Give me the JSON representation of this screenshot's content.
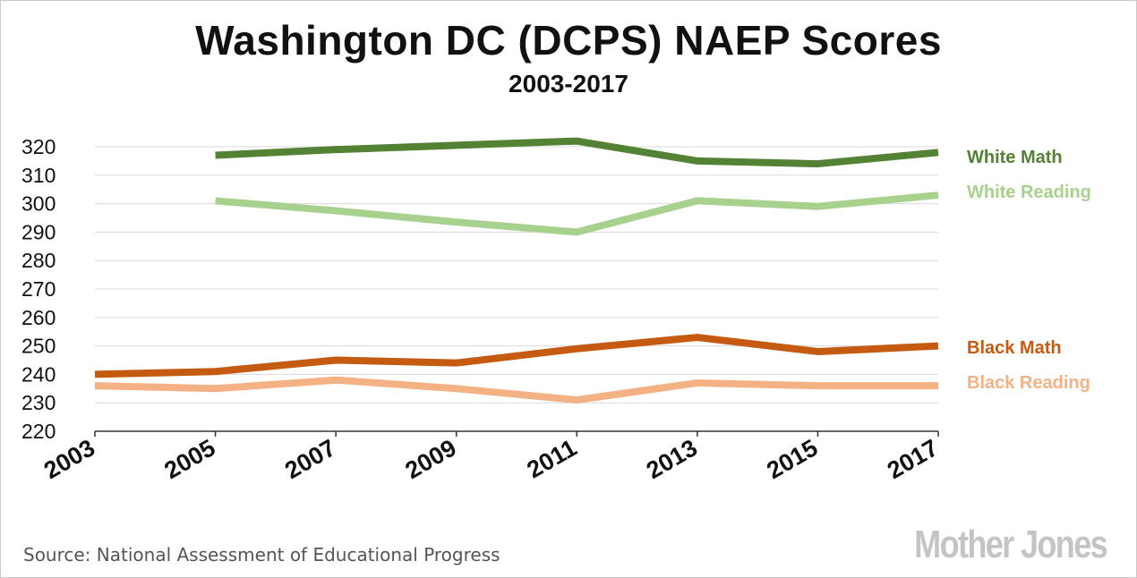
{
  "chart_data": {
    "type": "line",
    "title": "Washington DC (DCPS) NAEP Scores",
    "subtitle": "2003-2017",
    "x": [
      "2003",
      "2005",
      "2007",
      "2009",
      "2011",
      "2013",
      "2015",
      "2017"
    ],
    "ylim": [
      220,
      320
    ],
    "yticks": [
      "220",
      "230",
      "240",
      "250",
      "260",
      "270",
      "280",
      "290",
      "300",
      "310",
      "320"
    ],
    "grid": true,
    "legend": "right",
    "series": [
      {
        "name": "White Math",
        "color": "#548235",
        "values": [
          null,
          317,
          319,
          320.5,
          322,
          315,
          314,
          318
        ]
      },
      {
        "name": "White Reading",
        "color": "#a9d18e",
        "values": [
          null,
          301,
          297.5,
          293.5,
          290,
          301,
          299,
          303
        ]
      },
      {
        "name": "Black Math",
        "color": "#c55a11",
        "values": [
          240,
          241,
          245,
          244,
          249,
          253,
          248,
          250
        ]
      },
      {
        "name": "Black Reading",
        "color": "#f4b183",
        "values": [
          236,
          235,
          238,
          235,
          231,
          237,
          236,
          236
        ]
      }
    ]
  },
  "source": "Source: National Assessment of Educational Progress",
  "logo_text": "Mother Jones"
}
